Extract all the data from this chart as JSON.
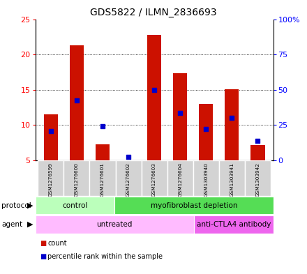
{
  "title": "GDS5822 / ILMN_2836693",
  "samples": [
    "GSM1276599",
    "GSM1276600",
    "GSM1276601",
    "GSM1276602",
    "GSM1276603",
    "GSM1276604",
    "GSM1303940",
    "GSM1303941",
    "GSM1303942"
  ],
  "count_values": [
    11.5,
    21.3,
    7.3,
    5.0,
    22.8,
    17.3,
    13.0,
    15.1,
    7.2
  ],
  "percentile_values": [
    20.5,
    42.5,
    24.0,
    2.5,
    50.0,
    33.5,
    22.0,
    30.0,
    14.0
  ],
  "ylim_left": [
    5,
    25
  ],
  "ylim_right": [
    0,
    100
  ],
  "yticks_left": [
    5,
    10,
    15,
    20,
    25
  ],
  "yticks_right": [
    0,
    25,
    50,
    75,
    100
  ],
  "yticklabels_right": [
    "0",
    "25",
    "50",
    "75",
    "100%"
  ],
  "bar_color": "#cc1100",
  "dot_color": "#0000cc",
  "bar_width": 0.55,
  "protocol_groups": [
    {
      "label": "control",
      "start": 0,
      "end": 3,
      "color": "#bbffbb"
    },
    {
      "label": "myofibroblast depletion",
      "start": 3,
      "end": 9,
      "color": "#55dd55"
    }
  ],
  "agent_groups": [
    {
      "label": "untreated",
      "start": 0,
      "end": 6,
      "color": "#ffbbff"
    },
    {
      "label": "anti-CTLA4 antibody",
      "start": 6,
      "end": 9,
      "color": "#ee66ee"
    }
  ],
  "legend_count_label": "count",
  "legend_pct_label": "percentile rank within the sample",
  "protocol_label": "protocol",
  "agent_label": "agent",
  "grid_color": "#000000"
}
